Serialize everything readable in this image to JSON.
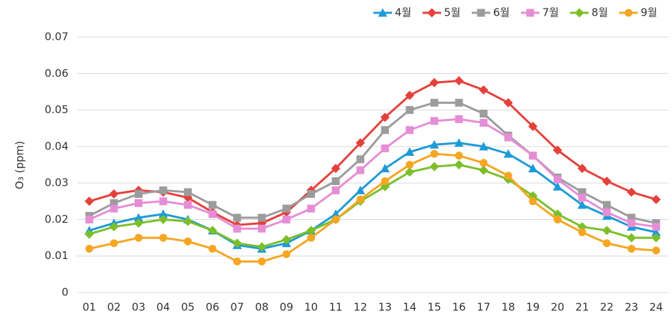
{
  "chart_data": {
    "type": "line",
    "y_label": "O₃ (ppm)",
    "categories": [
      "01",
      "02",
      "03",
      "04",
      "05",
      "06",
      "07",
      "08",
      "09",
      "10",
      "11",
      "12",
      "13",
      "14",
      "15",
      "16",
      "17",
      "18",
      "19",
      "20",
      "21",
      "22",
      "23",
      "24"
    ],
    "series": [
      {
        "name": "4월",
        "color": "#1e9bd7",
        "marker": "triangle",
        "values": [
          0.017,
          0.019,
          0.0205,
          0.0215,
          0.02,
          0.017,
          0.013,
          0.012,
          0.0135,
          0.017,
          0.0215,
          0.028,
          0.034,
          0.0385,
          0.0405,
          0.041,
          0.04,
          0.038,
          0.034,
          0.029,
          0.024,
          0.021,
          0.018,
          0.0165
        ]
      },
      {
        "name": "5월",
        "color": "#e5413b",
        "marker": "diamond",
        "values": [
          0.025,
          0.027,
          0.028,
          0.0275,
          0.026,
          0.022,
          0.0185,
          0.019,
          0.022,
          0.028,
          0.034,
          0.041,
          0.048,
          0.054,
          0.0575,
          0.058,
          0.0555,
          0.052,
          0.0455,
          0.039,
          0.034,
          0.0305,
          0.0275,
          0.0255
        ]
      },
      {
        "name": "6월",
        "color": "#9c9c9c",
        "marker": "square",
        "values": [
          0.021,
          0.0245,
          0.027,
          0.028,
          0.0275,
          0.024,
          0.0205,
          0.0205,
          0.023,
          0.027,
          0.0305,
          0.0365,
          0.0445,
          0.05,
          0.052,
          0.052,
          0.049,
          0.043,
          0.0375,
          0.0315,
          0.0275,
          0.024,
          0.0205,
          0.019
        ]
      },
      {
        "name": "7월",
        "color": "#e58ed6",
        "marker": "square",
        "values": [
          0.02,
          0.023,
          0.0245,
          0.025,
          0.024,
          0.0215,
          0.0175,
          0.0175,
          0.02,
          0.023,
          0.028,
          0.0335,
          0.0395,
          0.0445,
          0.047,
          0.0475,
          0.0465,
          0.0425,
          0.0375,
          0.031,
          0.026,
          0.022,
          0.019,
          0.018
        ]
      },
      {
        "name": "8월",
        "color": "#7cbf2a",
        "marker": "diamond",
        "values": [
          0.016,
          0.018,
          0.019,
          0.02,
          0.0195,
          0.017,
          0.0135,
          0.0125,
          0.0145,
          0.017,
          0.02,
          0.025,
          0.029,
          0.033,
          0.0345,
          0.035,
          0.0335,
          0.031,
          0.0265,
          0.0215,
          0.018,
          0.017,
          0.015,
          0.015
        ]
      },
      {
        "name": "9월",
        "color": "#f5a623",
        "marker": "circle",
        "values": [
          0.012,
          0.0135,
          0.015,
          0.015,
          0.014,
          0.012,
          0.0085,
          0.0085,
          0.0105,
          0.015,
          0.02,
          0.0255,
          0.0305,
          0.035,
          0.038,
          0.0375,
          0.0355,
          0.032,
          0.025,
          0.02,
          0.0165,
          0.0135,
          0.012,
          0.0115
        ]
      }
    ],
    "ylim": [
      0,
      0.07
    ],
    "yticks": [
      0,
      0.01,
      0.02,
      0.03,
      0.04,
      0.05,
      0.06,
      0.07
    ],
    "grid": true,
    "legend": "top-right"
  }
}
